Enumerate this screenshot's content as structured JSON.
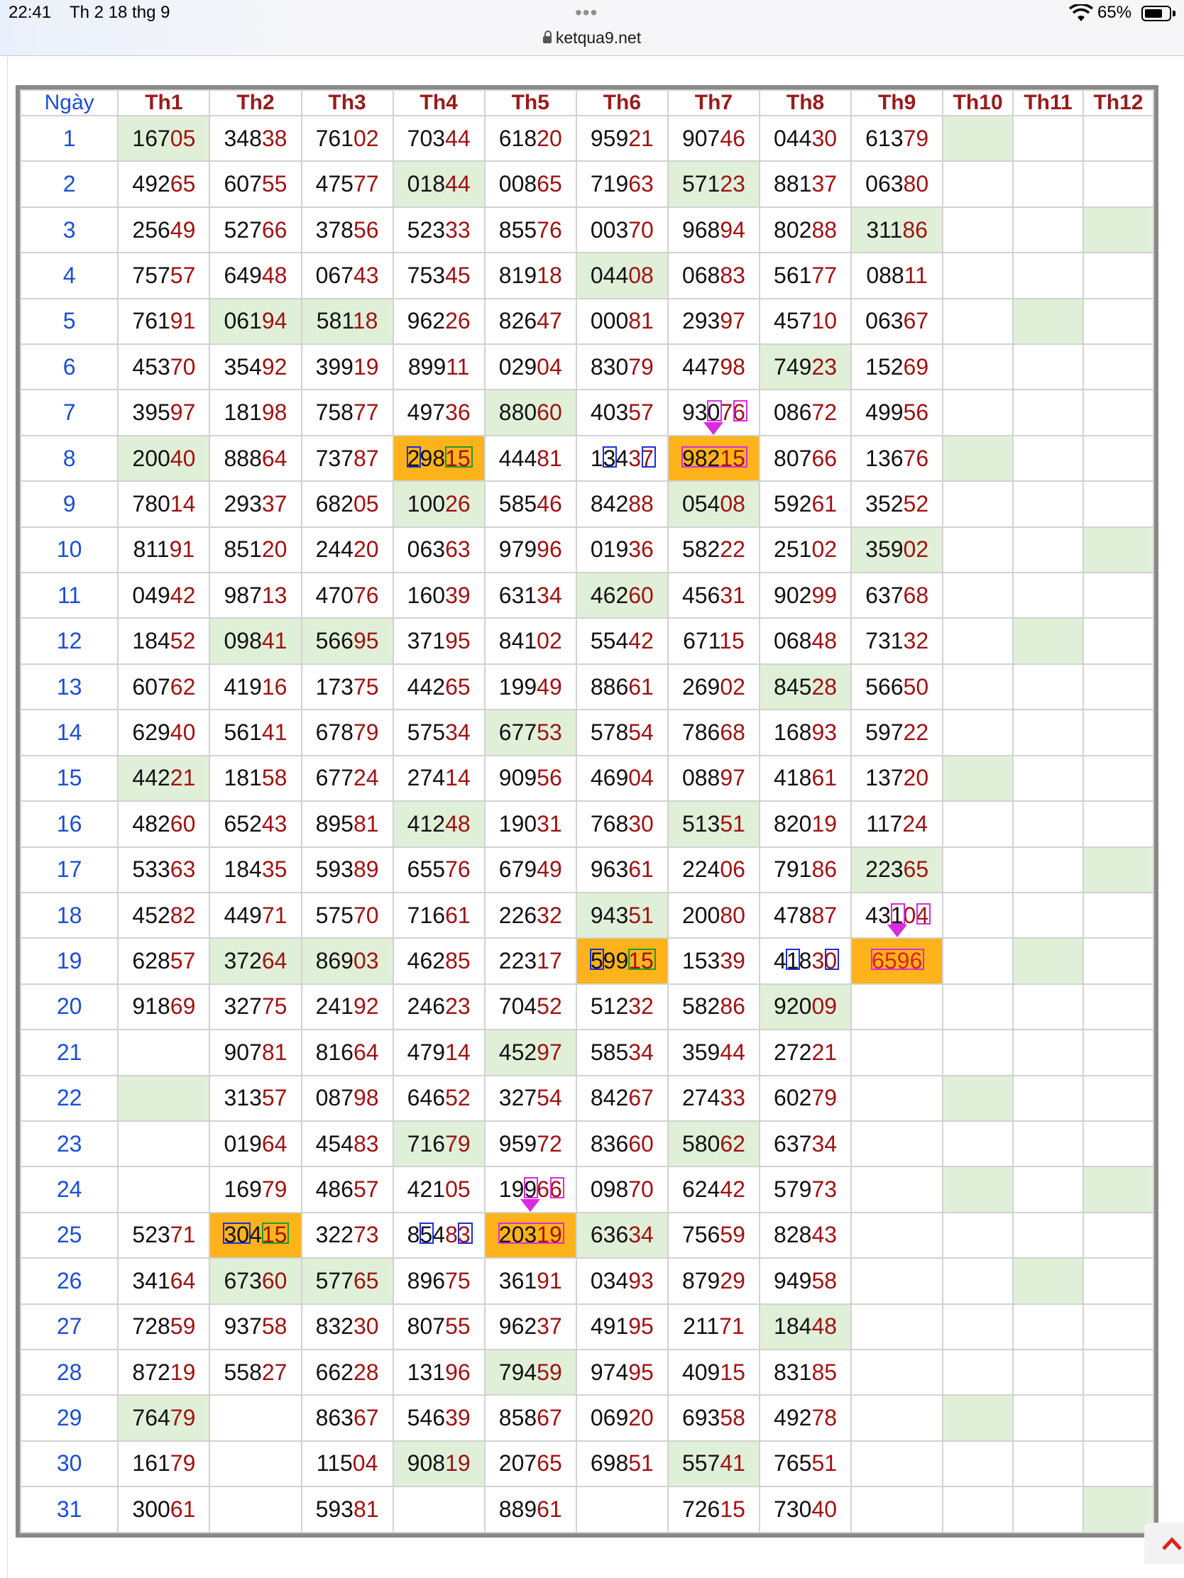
{
  "status_bar": {
    "time": "22:41",
    "date": "Th 2 18 thg 9",
    "dots": "•••",
    "wifi_icon": "wifi-icon",
    "battery": "65%"
  },
  "browser": {
    "url": "ketqua9.net",
    "lock_icon": "lock-icon"
  },
  "table": {
    "headers": [
      "Ngày",
      "Th1",
      "Th2",
      "Th3",
      "Th4",
      "Th5",
      "Th6",
      "Th7",
      "Th8",
      "Th9",
      "Th10",
      "Th11",
      "Th12"
    ],
    "rows": [
      {
        "day": "1",
        "cells": [
          "16705",
          "34838",
          "76102",
          "70344",
          "61820",
          "95921",
          "90746",
          "04430",
          "61379",
          "",
          "",
          ""
        ]
      },
      {
        "day": "2",
        "cells": [
          "49265",
          "60755",
          "47577",
          "01844",
          "00865",
          "71963",
          "57123",
          "88137",
          "06380",
          "",
          "",
          ""
        ]
      },
      {
        "day": "3",
        "cells": [
          "25649",
          "52766",
          "37856",
          "52333",
          "85576",
          "00370",
          "96894",
          "80288",
          "31186",
          "",
          "",
          ""
        ]
      },
      {
        "day": "4",
        "cells": [
          "75757",
          "64948",
          "06743",
          "75345",
          "81918",
          "04408",
          "06883",
          "56177",
          "08811",
          "",
          "",
          ""
        ]
      },
      {
        "day": "5",
        "cells": [
          "76191",
          "06194",
          "58118",
          "96226",
          "82647",
          "00081",
          "29397",
          "45710",
          "06367",
          "",
          "",
          ""
        ]
      },
      {
        "day": "6",
        "cells": [
          "45370",
          "35492",
          "39919",
          "89911",
          "02904",
          "83079",
          "44798",
          "74923",
          "15269",
          "",
          "",
          ""
        ]
      },
      {
        "day": "7",
        "cells": [
          "39597",
          "18198",
          "75877",
          "49736",
          "88060",
          "40357",
          "93076",
          "08672",
          "49956",
          "",
          "",
          ""
        ]
      },
      {
        "day": "8",
        "cells": [
          "20040",
          "88864",
          "73787",
          "29815",
          "44481",
          "13437",
          "98215",
          "80766",
          "13676",
          "",
          "",
          ""
        ]
      },
      {
        "day": "9",
        "cells": [
          "78014",
          "29337",
          "68205",
          "10026",
          "58546",
          "84288",
          "05408",
          "59261",
          "35252",
          "",
          "",
          ""
        ]
      },
      {
        "day": "10",
        "cells": [
          "81191",
          "85120",
          "24420",
          "06363",
          "97996",
          "01936",
          "58222",
          "25102",
          "35902",
          "",
          "",
          ""
        ]
      },
      {
        "day": "11",
        "cells": [
          "04942",
          "98713",
          "47076",
          "16039",
          "63134",
          "46260",
          "45631",
          "90299",
          "63768",
          "",
          "",
          ""
        ]
      },
      {
        "day": "12",
        "cells": [
          "18452",
          "09841",
          "56695",
          "37195",
          "84102",
          "55442",
          "67115",
          "06848",
          "73132",
          "",
          "",
          ""
        ]
      },
      {
        "day": "13",
        "cells": [
          "60762",
          "41916",
          "17375",
          "44265",
          "19949",
          "88661",
          "26902",
          "84528",
          "56650",
          "",
          "",
          ""
        ]
      },
      {
        "day": "14",
        "cells": [
          "62940",
          "56141",
          "67879",
          "57534",
          "67753",
          "57854",
          "78668",
          "16893",
          "59722",
          "",
          "",
          ""
        ]
      },
      {
        "day": "15",
        "cells": [
          "44221",
          "18158",
          "67724",
          "27414",
          "90956",
          "46904",
          "08897",
          "41861",
          "13720",
          "",
          "",
          ""
        ]
      },
      {
        "day": "16",
        "cells": [
          "48260",
          "65243",
          "89581",
          "41248",
          "19031",
          "76830",
          "51351",
          "82019",
          "11724",
          "",
          "",
          ""
        ]
      },
      {
        "day": "17",
        "cells": [
          "53363",
          "18435",
          "59389",
          "65576",
          "67949",
          "96361",
          "22406",
          "79186",
          "22365",
          "",
          "",
          ""
        ]
      },
      {
        "day": "18",
        "cells": [
          "45282",
          "44971",
          "57570",
          "71661",
          "22632",
          "94351",
          "20080",
          "47887",
          "43104",
          "",
          "",
          ""
        ]
      },
      {
        "day": "19",
        "cells": [
          "62857",
          "37264",
          "86903",
          "46285",
          "22317",
          "59915",
          "15339",
          "41830",
          "6596",
          "",
          "",
          ""
        ]
      },
      {
        "day": "20",
        "cells": [
          "91869",
          "32775",
          "24192",
          "24623",
          "70452",
          "51232",
          "58286",
          "92009",
          "",
          "",
          "",
          ""
        ]
      },
      {
        "day": "21",
        "cells": [
          "",
          "90781",
          "81664",
          "47914",
          "45297",
          "58534",
          "35944",
          "27221",
          "",
          "",
          "",
          ""
        ]
      },
      {
        "day": "22",
        "cells": [
          "",
          "31357",
          "08798",
          "64652",
          "32754",
          "84267",
          "27433",
          "60279",
          "",
          "",
          "",
          ""
        ]
      },
      {
        "day": "23",
        "cells": [
          "",
          "01964",
          "45483",
          "71679",
          "95972",
          "83660",
          "58062",
          "63734",
          "",
          "",
          "",
          ""
        ]
      },
      {
        "day": "24",
        "cells": [
          "",
          "16979",
          "48657",
          "42105",
          "19966",
          "09870",
          "62442",
          "57973",
          "",
          "",
          "",
          ""
        ]
      },
      {
        "day": "25",
        "cells": [
          "52371",
          "30415",
          "32273",
          "85483",
          "20319",
          "63634",
          "75659",
          "82843",
          "",
          "",
          "",
          ""
        ]
      },
      {
        "day": "26",
        "cells": [
          "34164",
          "67360",
          "57765",
          "89675",
          "36191",
          "03493",
          "87929",
          "94958",
          "",
          "",
          "",
          ""
        ]
      },
      {
        "day": "27",
        "cells": [
          "72859",
          "93758",
          "83230",
          "80755",
          "96237",
          "49195",
          "21171",
          "18448",
          "",
          "",
          "",
          ""
        ]
      },
      {
        "day": "28",
        "cells": [
          "87219",
          "55827",
          "66228",
          "13196",
          "79459",
          "97495",
          "40915",
          "83185",
          "",
          "",
          "",
          ""
        ]
      },
      {
        "day": "29",
        "cells": [
          "76479",
          "",
          "86367",
          "54639",
          "85867",
          "06920",
          "69358",
          "49278",
          "",
          "",
          "",
          ""
        ]
      },
      {
        "day": "30",
        "cells": [
          "16179",
          "",
          "11504",
          "90819",
          "20765",
          "69851",
          "55741",
          "76551",
          "",
          "",
          "",
          ""
        ]
      },
      {
        "day": "31",
        "cells": [
          "30061",
          "",
          "59381",
          "",
          "88961",
          "",
          "72615",
          "73040",
          "",
          "",
          "",
          ""
        ]
      }
    ],
    "colors": {
      "header_text": "#9b1b1b",
      "day_text": "#1a4ed8",
      "last_two_digits": "#a01212",
      "highlight_green": "#e0f0d8",
      "highlight_orange": "#ffb31a",
      "mark_blue": "#1a2fd8",
      "mark_green": "#1f9a2a",
      "mark_pink": "#d92be0"
    }
  },
  "scroll_button": {
    "icon": "chevron-up-icon"
  }
}
